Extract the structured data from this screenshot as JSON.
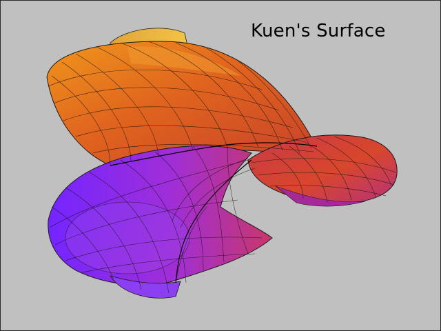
{
  "figure": {
    "title": "Kuen's Surface",
    "background_color": "#c0c0c0",
    "surface_type": "Kuen's surface (parametric 3D surface)",
    "colormap": [
      "#7a22ff",
      "#a72bd0",
      "#d8385a",
      "#e9541f",
      "#f08a14",
      "#f2c446"
    ],
    "mesh_line_color": "#000000"
  }
}
